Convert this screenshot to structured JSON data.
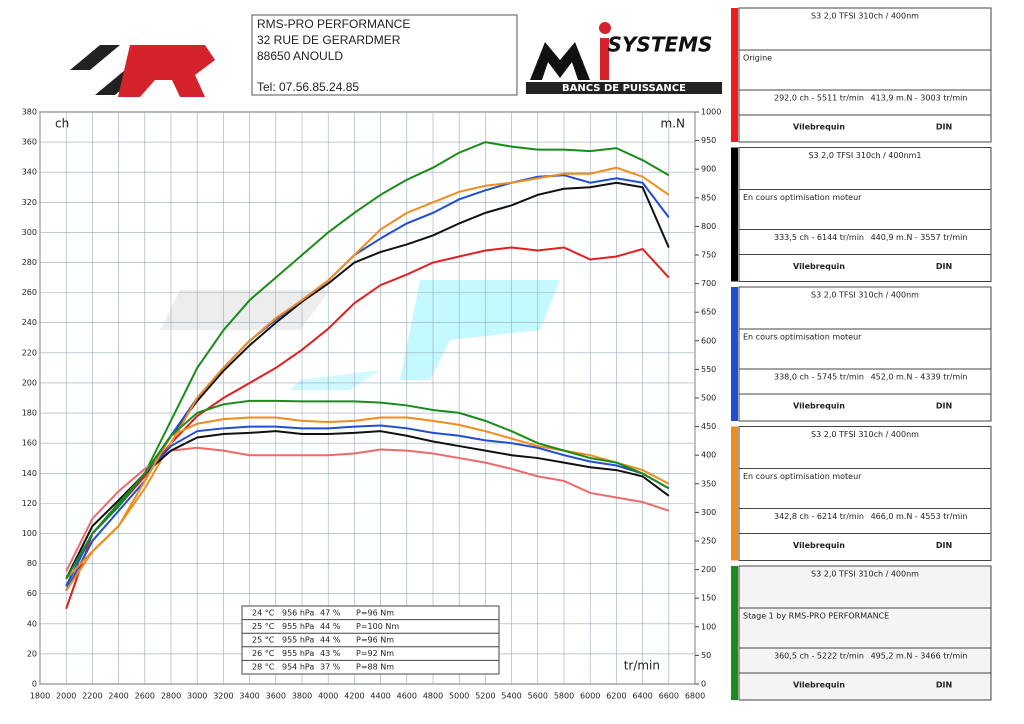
{
  "header": {
    "lines": [
      "RMS-PRO PERFORMANCE",
      "32 RUE DE GERARDMER",
      "88650 ANOULD"
    ],
    "phone": "Tel: 07.56.85.24.85"
  },
  "logo": {
    "name": "SYSTEMS",
    "tagline": "BANCS DE PUISSANCE"
  },
  "chart_data": {
    "type": "line",
    "y_label": "ch",
    "y2_label": "m.N",
    "x_label": "tr/min",
    "x": [
      2000,
      2200,
      2400,
      2600,
      2800,
      3000,
      3200,
      3400,
      3600,
      3800,
      4000,
      4200,
      4400,
      4600,
      4800,
      5000,
      5200,
      5400,
      5600,
      5800,
      6000,
      6200,
      6400,
      6600
    ],
    "xlim": [
      1800,
      6800
    ],
    "xticks": [
      1800,
      2000,
      2200,
      2400,
      2600,
      2800,
      3000,
      3200,
      3400,
      3600,
      3800,
      4000,
      4200,
      4400,
      4600,
      4800,
      5000,
      5200,
      5400,
      5600,
      5800,
      6000,
      6200,
      6400,
      6600,
      6800
    ],
    "ylim": [
      0,
      380
    ],
    "yticks": [
      0,
      20,
      40,
      60,
      80,
      100,
      120,
      140,
      160,
      180,
      200,
      220,
      240,
      260,
      280,
      300,
      320,
      340,
      360,
      380
    ],
    "y2lim": [
      0,
      1000
    ],
    "y2ticks": [
      0,
      50,
      100,
      150,
      200,
      250,
      300,
      350,
      400,
      450,
      500,
      550,
      600,
      650,
      700,
      750,
      800,
      850,
      900,
      950,
      1000
    ],
    "grid": true,
    "series": [
      {
        "color": "#e02020",
        "values": [
          50,
          100,
          118,
          138,
          160,
          178,
          190,
          200,
          210,
          222,
          236,
          253,
          265,
          272,
          280,
          284,
          288,
          290,
          288,
          290,
          282,
          284,
          289,
          270
        ]
      },
      {
        "color": "#111111",
        "values": [
          65,
          100,
          118,
          140,
          165,
          188,
          208,
          225,
          240,
          254,
          266,
          280,
          287,
          292,
          298,
          306,
          313,
          318,
          325,
          329,
          330,
          333,
          330,
          290
        ]
      },
      {
        "color": "#1f4fd0",
        "values": [
          62,
          95,
          115,
          135,
          165,
          190,
          210,
          228,
          242,
          255,
          268,
          285,
          296,
          306,
          313,
          322,
          328,
          333,
          337,
          338,
          333,
          336,
          333,
          310
        ]
      },
      {
        "color": "#f08c1e",
        "values": [
          62,
          88,
          105,
          130,
          160,
          190,
          210,
          228,
          243,
          255,
          268,
          285,
          302,
          313,
          320,
          327,
          331,
          333,
          336,
          339,
          339,
          343,
          337,
          325
        ]
      },
      {
        "color": "#1a8c1a",
        "values": [
          65,
          100,
          118,
          140,
          175,
          210,
          235,
          255,
          270,
          285,
          300,
          313,
          325,
          335,
          343,
          353,
          360,
          357,
          355,
          355,
          354,
          356,
          348,
          338
        ]
      },
      {
        "color": "#ee6a6a",
        "axis": "y2",
        "values": [
          197,
          289,
          337,
          376,
          408,
          413,
          408,
          400,
          400,
          400,
          400,
          403,
          410,
          408,
          403,
          395,
          387,
          376,
          363,
          355,
          334,
          326,
          318,
          303
        ]
      },
      {
        "color": "#111111",
        "axis": "y2",
        "values": [
          184,
          276,
          321,
          368,
          408,
          431,
          437,
          439,
          442,
          437,
          437,
          439,
          442,
          434,
          424,
          416,
          408,
          400,
          395,
          387,
          379,
          374,
          363,
          329
        ]
      },
      {
        "color": "#1f4fd0",
        "axis": "y2",
        "values": [
          171,
          263,
          316,
          368,
          416,
          442,
          447,
          450,
          450,
          447,
          447,
          450,
          452,
          447,
          439,
          434,
          426,
          421,
          413,
          400,
          389,
          382,
          368,
          342
        ]
      },
      {
        "color": "#f08c1e",
        "axis": "y2",
        "values": [
          184,
          232,
          276,
          355,
          434,
          455,
          463,
          466,
          466,
          460,
          458,
          460,
          466,
          466,
          460,
          453,
          442,
          429,
          416,
          408,
          400,
          387,
          374,
          350
        ]
      },
      {
        "color": "#1a8c1a",
        "axis": "y2",
        "values": [
          184,
          263,
          316,
          368,
          434,
          474,
          489,
          495,
          495,
          494,
          494,
          494,
          492,
          487,
          479,
          474,
          460,
          442,
          421,
          408,
          395,
          387,
          368,
          342
        ]
      }
    ]
  },
  "conditions": [
    [
      "24 °C",
      "956 hPa",
      "47 %",
      "P=96 Nm"
    ],
    [
      "25 °C",
      "955 hPa",
      "44 %",
      "P=100 Nm"
    ],
    [
      "25 °C",
      "955 hPa",
      "44 %",
      "P=96 Nm"
    ],
    [
      "26 °C",
      "955 hPa",
      "43 %",
      "P=92 Nm"
    ],
    [
      "28 °C",
      "954 hPa",
      "37 %",
      "P=88 Nm"
    ]
  ],
  "runs": [
    {
      "color": "#ee1c1c",
      "title": "S3 2,0 TFSI 310ch / 400nm",
      "description": "Origine",
      "power": "292,0 ch - 5511 tr/min",
      "torque": "413,9 m.N - 3003 tr/min",
      "crank": "Vilebrequin",
      "norm": "DIN"
    },
    {
      "color": "#000000",
      "title": "S3 2,0 TFSI 310ch / 400nm1",
      "description": "En cours optimisation moteur",
      "power": "333,5 ch - 6144 tr/min",
      "torque": "440,9 m.N - 3557 tr/min",
      "crank": "Vilebrequin",
      "norm": "DIN"
    },
    {
      "color": "#1f4fd0",
      "title": "S3 2,0 TFSI 310ch / 400nm",
      "description": "En cours optimisation moteur",
      "power": "338,0 ch - 5745 tr/min",
      "torque": "452,0 m.N - 4339 tr/min",
      "crank": "Vilebrequin",
      "norm": "DIN"
    },
    {
      "color": "#f08c1e",
      "title": "S3 2,0 TFSI 310ch / 400nm",
      "description": "En cours optimisation moteur",
      "power": "342,8 ch - 6214 tr/min",
      "torque": "466,0 m.N - 4553 tr/min",
      "crank": "Vilebrequin",
      "norm": "DIN"
    },
    {
      "color": "#1a8c1a",
      "title": "S3 2,0 TFSI 310ch / 400nm",
      "description": "Stage 1 by RMS-PRO PERFORMANCE",
      "power": "360,5 ch - 5222 tr/min",
      "torque": "495,2 m.N - 3466 tr/min",
      "crank": "Vilebrequin",
      "norm": "DIN"
    }
  ]
}
